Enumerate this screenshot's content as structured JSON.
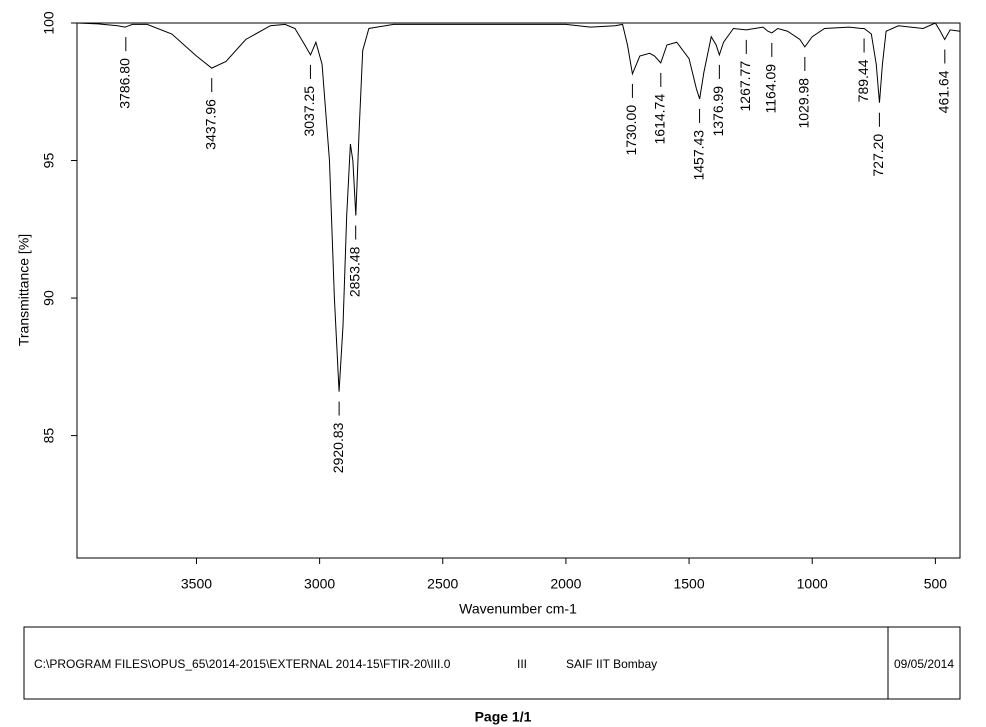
{
  "chart_data": {
    "type": "line",
    "xlabel": "Wavenumber cm-1",
    "ylabel": "Transmittance [%]",
    "xlim": [
      3985,
      400
    ],
    "ylim": [
      80.55,
      100
    ],
    "xticks": [
      3500,
      3000,
      2500,
      2000,
      1500,
      1000,
      500
    ],
    "yticks": [
      85,
      90,
      95,
      100
    ],
    "color": "#000000",
    "x": [
      3985,
      3900,
      3820,
      3790,
      3760,
      3700,
      3600,
      3500,
      3438,
      3380,
      3300,
      3200,
      3140,
      3100,
      3060,
      3037,
      3015,
      2990,
      2960,
      2940,
      2921,
      2905,
      2890,
      2875,
      2865,
      2853,
      2840,
      2825,
      2800,
      2700,
      2000,
      1900,
      1800,
      1770,
      1750,
      1730,
      1700,
      1660,
      1640,
      1615,
      1590,
      1550,
      1500,
      1470,
      1457,
      1440,
      1410,
      1390,
      1377,
      1360,
      1320,
      1268,
      1200,
      1180,
      1164,
      1140,
      1100,
      1050,
      1030,
      1000,
      950,
      850,
      800,
      789,
      760,
      740,
      727,
      715,
      700,
      650,
      550,
      500,
      480,
      462,
      440,
      400
    ],
    "values": [
      100,
      99.97,
      99.9,
      99.85,
      99.95,
      99.95,
      99.6,
      98.8,
      98.36,
      98.6,
      99.4,
      99.9,
      99.95,
      99.8,
      99.2,
      98.84,
      99.3,
      98.5,
      95,
      90,
      86.6,
      89,
      93,
      95.6,
      95.0,
      93.0,
      96,
      99,
      99.8,
      99.95,
      99.95,
      99.85,
      99.9,
      99.95,
      99.2,
      98.15,
      98.8,
      98.9,
      98.8,
      98.55,
      99.2,
      99.3,
      98.7,
      97.6,
      97.24,
      98.2,
      99.5,
      99.2,
      98.84,
      99.3,
      99.8,
      99.75,
      99.85,
      99.7,
      99.64,
      99.8,
      99.7,
      99.4,
      99.13,
      99.5,
      99.8,
      99.85,
      99.8,
      99.8,
      99.6,
      98.5,
      97.1,
      98.5,
      99.7,
      99.9,
      99.8,
      100,
      99.7,
      99.4,
      99.75,
      99.7
    ],
    "peaks": [
      {
        "value": 3786.8,
        "label": "3786.80",
        "y": 99.85
      },
      {
        "value": 3437.96,
        "label": "3437.96",
        "y": 98.36
      },
      {
        "value": 3037.25,
        "label": "3037.25",
        "y": 98.84
      },
      {
        "value": 2920.83,
        "label": "2920.83",
        "y": 86.6
      },
      {
        "value": 2853.48,
        "label": "2853.48",
        "y": 93.0
      },
      {
        "value": 1730,
        "label": "1730.00",
        "y": 98.15
      },
      {
        "value": 1614.74,
        "label": "1614.74",
        "y": 98.55
      },
      {
        "value": 1457.43,
        "label": "1457.43",
        "y": 97.24
      },
      {
        "value": 1376.99,
        "label": "1376.99",
        "y": 98.84
      },
      {
        "value": 1267.77,
        "label": "1267.77",
        "y": 99.75
      },
      {
        "value": 1164.09,
        "label": "1164.09",
        "y": 99.64
      },
      {
        "value": 1029.98,
        "label": "1029.98",
        "y": 99.13
      },
      {
        "value": 789.44,
        "label": "789.44",
        "y": 99.8
      },
      {
        "value": 727.2,
        "label": "727.20",
        "y": 97.1
      },
      {
        "value": 461.64,
        "label": "461.64",
        "y": 99.4
      }
    ]
  },
  "footer": {
    "path": "C:\\PROGRAM FILES\\OPUS_65\\2014-2015\\EXTERNAL 2014-15\\FTIR-20\\III.0",
    "sample": "III",
    "lab": "SAIF IIT Bombay",
    "date": "09/05/2014",
    "page": "Page 1/1"
  }
}
